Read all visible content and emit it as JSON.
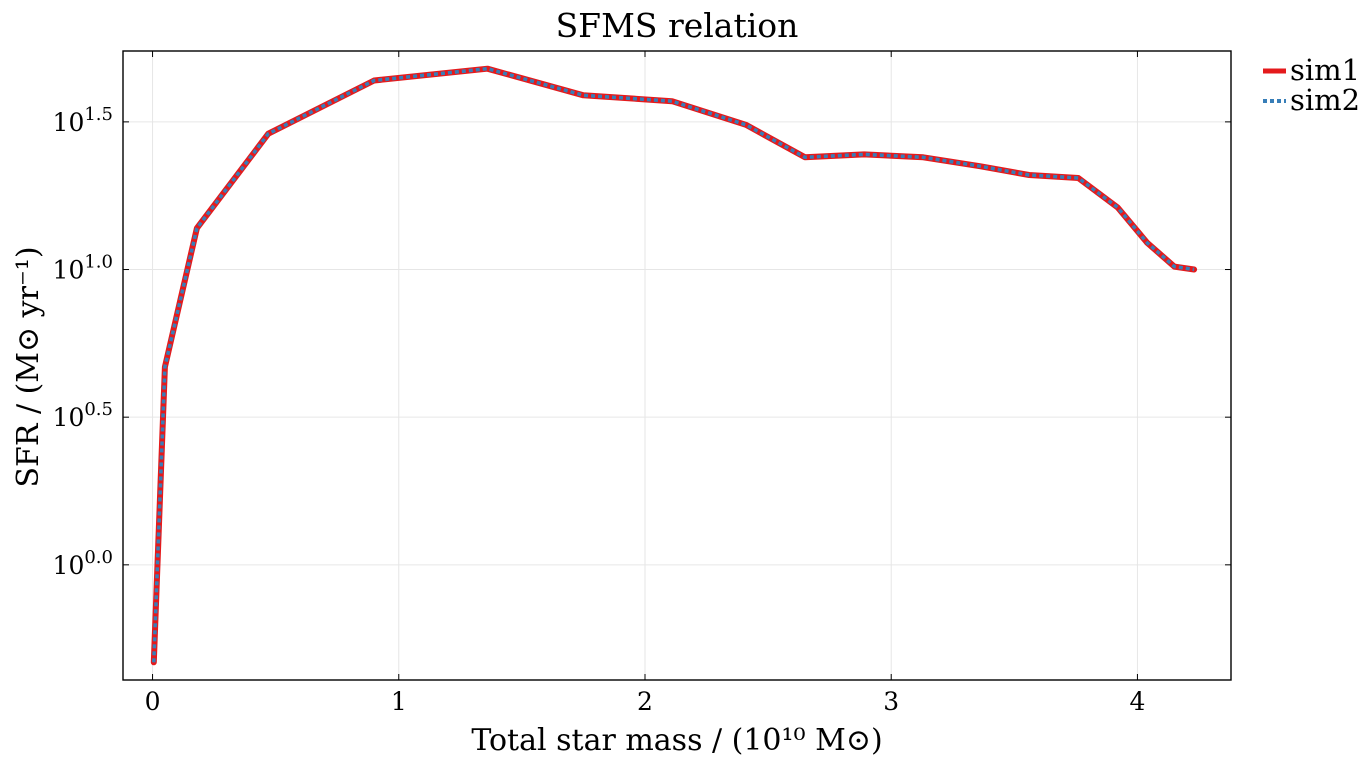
{
  "chart_data": {
    "type": "line",
    "title": "SFMS relation",
    "xlabel": "Total star mass / (10¹⁰ M⊙)",
    "ylabel": "SFR / (M⊙ yr⁻¹)",
    "xlim": [
      -0.12,
      4.38
    ],
    "ylim_log10": [
      -0.39,
      1.74
    ],
    "yscale": "log10",
    "grid": true,
    "legend_position": "outside-top-right",
    "x_ticks": [
      {
        "value": 0,
        "label": "0"
      },
      {
        "value": 1,
        "label": "1"
      },
      {
        "value": 2,
        "label": "2"
      },
      {
        "value": 3,
        "label": "3"
      },
      {
        "value": 4,
        "label": "4"
      }
    ],
    "y_ticks": [
      {
        "value": 0.0,
        "base": "10",
        "exp": "0.0"
      },
      {
        "value": 0.5,
        "base": "10",
        "exp": "0.5"
      },
      {
        "value": 1.0,
        "base": "10",
        "exp": "1.0"
      },
      {
        "value": 1.5,
        "base": "10",
        "exp": "1.5"
      }
    ],
    "series": [
      {
        "name": "sim1",
        "color": "#e41a1c",
        "style": "solid",
        "x": [
          0.005,
          0.05,
          0.18,
          0.47,
          0.9,
          1.36,
          1.75,
          2.11,
          2.41,
          2.65,
          2.89,
          3.13,
          3.36,
          3.56,
          3.76,
          3.92,
          4.04,
          4.15,
          4.23
        ],
        "log10_y": [
          -0.33,
          0.67,
          1.14,
          1.46,
          1.64,
          1.68,
          1.59,
          1.57,
          1.49,
          1.38,
          1.39,
          1.38,
          1.35,
          1.32,
          1.31,
          1.21,
          1.09,
          1.01,
          1.0
        ]
      },
      {
        "name": "sim2",
        "color": "#377eb8",
        "style": "dotted",
        "x": [
          0.005,
          0.05,
          0.18,
          0.47,
          0.9,
          1.36,
          1.75,
          2.11,
          2.41,
          2.65,
          2.89,
          3.13,
          3.36,
          3.56,
          3.76,
          3.92,
          4.04,
          4.15,
          4.23
        ],
        "log10_y": [
          -0.33,
          0.67,
          1.14,
          1.46,
          1.64,
          1.68,
          1.59,
          1.57,
          1.49,
          1.38,
          1.39,
          1.38,
          1.35,
          1.32,
          1.31,
          1.21,
          1.09,
          1.01,
          1.0
        ]
      }
    ]
  }
}
